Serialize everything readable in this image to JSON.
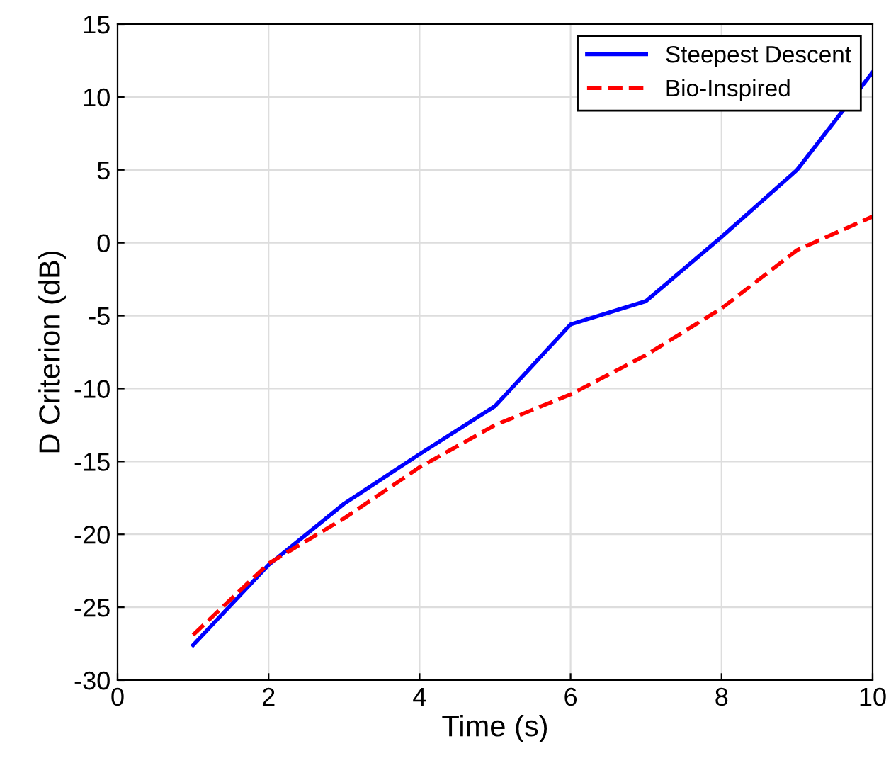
{
  "chart_data": {
    "type": "line",
    "xlabel": "Time (s)",
    "ylabel": "D Criterion (dB)",
    "x": [
      1,
      2,
      3,
      4,
      5,
      6,
      7,
      8,
      9,
      10
    ],
    "series": [
      {
        "name": "Steepest Descent",
        "color": "#0000ff",
        "line_style": "solid",
        "values": [
          -27.6,
          -22.1,
          -17.9,
          -14.5,
          -11.2,
          -5.6,
          -4.0,
          0.4,
          5.0,
          11.7
        ]
      },
      {
        "name": "Bio-Inspired",
        "color": "#ff0000",
        "line_style": "dashed",
        "values": [
          -26.9,
          -22.0,
          -18.9,
          -15.4,
          -12.5,
          -10.4,
          -7.7,
          -4.5,
          -0.5,
          1.8
        ]
      }
    ],
    "xlim": [
      0,
      10
    ],
    "xticks": [
      0,
      2,
      4,
      6,
      8,
      10
    ],
    "ylim": [
      -30,
      15
    ],
    "yticks": [
      -30,
      -25,
      -20,
      -15,
      -10,
      -5,
      0,
      5,
      10,
      15
    ],
    "grid": true,
    "legend": "top right",
    "marker": "none"
  }
}
